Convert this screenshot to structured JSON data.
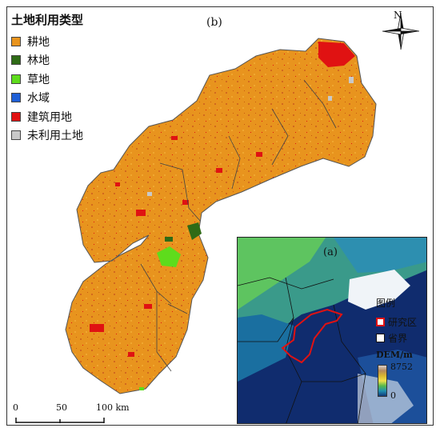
{
  "legend": {
    "title": "土地利用类型",
    "items": [
      {
        "label": "耕地",
        "color": "#e8941e"
      },
      {
        "label": "林地",
        "color": "#2f6b16"
      },
      {
        "label": "草地",
        "color": "#5edc1c"
      },
      {
        "label": "水域",
        "color": "#1f5fd6"
      },
      {
        "label": "建筑用地",
        "color": "#e01212"
      },
      {
        "label": "未利用土地",
        "color": "#c8c8c8"
      }
    ]
  },
  "panel_label": "(b)",
  "north_label": "N",
  "scale_bar": {
    "ticks": [
      "0",
      "50",
      "100 km"
    ]
  },
  "inset": {
    "panel_label": "(a)",
    "legend_title": "图例",
    "items": [
      {
        "label": "研究区",
        "color": "#e01212"
      },
      {
        "label": "省界",
        "color": "#111111"
      }
    ],
    "dem_title": "DEM/m",
    "dem_max": "8752",
    "dem_min": "0"
  }
}
